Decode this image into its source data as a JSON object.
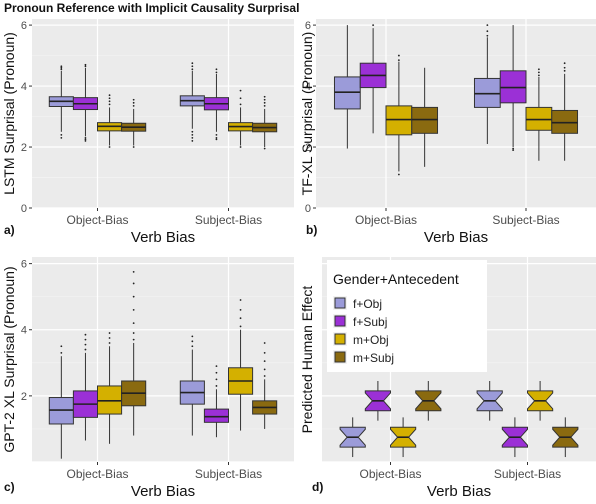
{
  "figure_title": "Pronoun Reference with Implicit Causality Surprisal",
  "legend": {
    "title": "Gender+Antecedent",
    "entries": [
      {
        "label": "f+Obj",
        "color": "#9b9bd9"
      },
      {
        "label": "f+Subj",
        "color": "#9b30d6"
      },
      {
        "label": "m+Obj",
        "color": "#d4b000"
      },
      {
        "label": "m+Subj",
        "color": "#8a6a10"
      }
    ]
  },
  "chart_data": [
    {
      "id": "a",
      "type": "box",
      "panel_label": "a)",
      "ylabel": "LSTM Surprisal (Pronoun)",
      "xlabel": "Verb Bias",
      "categories": [
        "Object-Bias",
        "Subject-Bias"
      ],
      "ylim": [
        0,
        6.2
      ],
      "yticks": [
        0,
        2,
        4,
        6
      ],
      "grid": true,
      "notch": false,
      "boxes": [
        {
          "cat": 0,
          "group": 0,
          "q1": 3.33,
          "median": 3.5,
          "q3": 3.65,
          "whisker_low": 2.5,
          "whisker_high": 4.5,
          "outliers_low": [
            2.4,
            2.3
          ],
          "outliers_high": [
            4.55,
            4.6,
            4.65
          ]
        },
        {
          "cat": 0,
          "group": 1,
          "q1": 3.23,
          "median": 3.42,
          "q3": 3.62,
          "whisker_low": 2.35,
          "whisker_high": 4.6,
          "outliers_low": [
            2.3,
            2.25,
            2.2
          ],
          "outliers_high": [
            4.65,
            4.7
          ]
        },
        {
          "cat": 0,
          "group": 2,
          "q1": 2.53,
          "median": 2.68,
          "q3": 2.8,
          "whisker_low": 2.05,
          "whisker_high": 3.3,
          "outliers_low": [
            2.0
          ],
          "outliers_high": [
            3.4,
            3.5,
            3.6,
            3.7
          ]
        },
        {
          "cat": 0,
          "group": 3,
          "q1": 2.52,
          "median": 2.65,
          "q3": 2.78,
          "whisker_low": 2.05,
          "whisker_high": 3.25,
          "outliers_low": [
            2.0
          ],
          "outliers_high": [
            3.35,
            3.45,
            3.55
          ]
        },
        {
          "cat": 1,
          "group": 0,
          "q1": 3.35,
          "median": 3.52,
          "q3": 3.68,
          "whisker_low": 2.6,
          "whisker_high": 4.5,
          "outliers_low": [
            2.5,
            2.4,
            2.3,
            2.2
          ],
          "outliers_high": [
            4.55,
            4.65,
            4.75
          ]
        },
        {
          "cat": 1,
          "group": 1,
          "q1": 3.22,
          "median": 3.42,
          "q3": 3.62,
          "whisker_low": 2.5,
          "whisker_high": 4.4,
          "outliers_low": [
            2.4,
            2.3,
            2.25
          ],
          "outliers_high": [
            4.45,
            4.55
          ]
        },
        {
          "cat": 1,
          "group": 2,
          "q1": 2.53,
          "median": 2.67,
          "q3": 2.8,
          "whisker_low": 2.05,
          "whisker_high": 3.3,
          "outliers_low": [
            2.0
          ],
          "outliers_high": [
            3.4,
            3.6,
            3.85
          ]
        },
        {
          "cat": 1,
          "group": 3,
          "q1": 2.5,
          "median": 2.64,
          "q3": 2.78,
          "whisker_low": 2.0,
          "whisker_high": 3.25,
          "outliers_low": [
            1.95
          ],
          "outliers_high": [
            3.35,
            3.45,
            3.55,
            3.65
          ]
        }
      ]
    },
    {
      "id": "b",
      "type": "box",
      "panel_label": "b)",
      "ylabel": "TF-XL Surprisal (Pronoun)",
      "xlabel": "Verb Bias",
      "categories": [
        "Object-Bias",
        "Subject-Bias"
      ],
      "ylim": [
        0,
        6.2
      ],
      "yticks": [
        0,
        2,
        4,
        6
      ],
      "grid": true,
      "notch": false,
      "boxes": [
        {
          "cat": 0,
          "group": 0,
          "q1": 3.25,
          "median": 3.8,
          "q3": 4.3,
          "whisker_low": 1.95,
          "whisker_high": 6.0,
          "outliers_low": [],
          "outliers_high": []
        },
        {
          "cat": 0,
          "group": 1,
          "q1": 3.95,
          "median": 4.35,
          "q3": 4.75,
          "whisker_low": 2.45,
          "whisker_high": 5.9,
          "outliers_low": [],
          "outliers_high": [
            6.0
          ]
        },
        {
          "cat": 0,
          "group": 2,
          "q1": 2.4,
          "median": 2.9,
          "q3": 3.35,
          "whisker_low": 1.2,
          "whisker_high": 4.8,
          "outliers_low": [
            1.1
          ],
          "outliers_high": [
            4.85,
            5.0
          ]
        },
        {
          "cat": 0,
          "group": 3,
          "q1": 2.45,
          "median": 2.9,
          "q3": 3.3,
          "whisker_low": 1.35,
          "whisker_high": 4.6,
          "outliers_low": [],
          "outliers_high": []
        },
        {
          "cat": 1,
          "group": 0,
          "q1": 3.3,
          "median": 3.75,
          "q3": 4.25,
          "whisker_low": 2.1,
          "whisker_high": 5.6,
          "outliers_low": [],
          "outliers_high": [
            5.65,
            5.8,
            6.0
          ]
        },
        {
          "cat": 1,
          "group": 1,
          "q1": 3.45,
          "median": 3.95,
          "q3": 4.5,
          "whisker_low": 2.0,
          "whisker_high": 6.0,
          "outliers_low": [
            1.95,
            1.9
          ],
          "outliers_high": []
        },
        {
          "cat": 1,
          "group": 2,
          "q1": 2.55,
          "median": 2.9,
          "q3": 3.3,
          "whisker_low": 1.55,
          "whisker_high": 4.3,
          "outliers_low": [],
          "outliers_high": [
            4.35,
            4.45,
            4.55
          ]
        },
        {
          "cat": 1,
          "group": 3,
          "q1": 2.45,
          "median": 2.8,
          "q3": 3.2,
          "whisker_low": 1.55,
          "whisker_high": 4.4,
          "outliers_low": [],
          "outliers_high": [
            4.5,
            4.6,
            4.75
          ]
        }
      ]
    },
    {
      "id": "c",
      "type": "box",
      "panel_label": "c)",
      "ylabel": "GPT-2 XL Surprisal (Pronoun)",
      "xlabel": "Verb Bias",
      "categories": [
        "Object-Bias",
        "Subject-Bias"
      ],
      "ylim": [
        0,
        6.2
      ],
      "yticks": [
        2,
        4,
        6
      ],
      "grid": true,
      "notch": false,
      "boxes": [
        {
          "cat": 0,
          "group": 0,
          "q1": 1.15,
          "median": 1.57,
          "q3": 1.95,
          "whisker_low": 0.1,
          "whisker_high": 3.2,
          "outliers_low": [],
          "outliers_high": [
            3.3,
            3.5
          ]
        },
        {
          "cat": 0,
          "group": 1,
          "q1": 1.35,
          "median": 1.75,
          "q3": 2.15,
          "whisker_low": 0.65,
          "whisker_high": 3.3,
          "outliers_low": [],
          "outliers_high": [
            3.4,
            3.55,
            3.7,
            3.85
          ]
        },
        {
          "cat": 0,
          "group": 2,
          "q1": 1.45,
          "median": 1.85,
          "q3": 2.3,
          "whisker_low": 0.55,
          "whisker_high": 3.5,
          "outliers_low": [],
          "outliers_high": [
            3.6,
            3.75,
            3.9
          ]
        },
        {
          "cat": 0,
          "group": 3,
          "q1": 1.7,
          "median": 2.08,
          "q3": 2.45,
          "whisker_low": 0.8,
          "whisker_high": 3.6,
          "outliers_low": [],
          "outliers_high": [
            3.7,
            3.9,
            4.2,
            4.6,
            5.0,
            5.4,
            5.75
          ]
        },
        {
          "cat": 1,
          "group": 0,
          "q1": 1.75,
          "median": 2.1,
          "q3": 2.45,
          "whisker_low": 0.8,
          "whisker_high": 3.4,
          "outliers_low": [],
          "outliers_high": [
            3.5,
            3.65,
            3.8
          ]
        },
        {
          "cat": 1,
          "group": 1,
          "q1": 1.2,
          "median": 1.37,
          "q3": 1.6,
          "whisker_low": 0.75,
          "whisker_high": 2.2,
          "outliers_low": [],
          "outliers_high": [
            2.3,
            2.5,
            2.7,
            2.9
          ]
        },
        {
          "cat": 1,
          "group": 2,
          "q1": 2.05,
          "median": 2.45,
          "q3": 2.85,
          "whisker_low": 0.95,
          "whisker_high": 4.0,
          "outliers_low": [],
          "outliers_high": [
            4.1,
            4.35,
            4.6,
            4.9
          ]
        },
        {
          "cat": 1,
          "group": 3,
          "q1": 1.45,
          "median": 1.65,
          "q3": 1.85,
          "whisker_low": 1.0,
          "whisker_high": 2.5,
          "outliers_low": [],
          "outliers_high": [
            2.6,
            2.8,
            3.05,
            3.3,
            3.6
          ]
        }
      ]
    },
    {
      "id": "d",
      "type": "box",
      "panel_label": "d)",
      "ylabel": "Predicted Human Effect",
      "xlabel": "Verb Bias",
      "categories": [
        "Object-Bias",
        "Subject-Bias"
      ],
      "ylim": [
        0,
        6.2
      ],
      "yticks": [],
      "grid": true,
      "notch": true,
      "boxes": [
        {
          "cat": 0,
          "group": 0,
          "q1": 0.45,
          "median": 0.75,
          "q3": 1.05,
          "whisker_low": 0.15,
          "whisker_high": 1.35,
          "outliers_low": [],
          "outliers_high": []
        },
        {
          "cat": 0,
          "group": 1,
          "q1": 1.55,
          "median": 1.85,
          "q3": 2.15,
          "whisker_low": 1.25,
          "whisker_high": 2.45,
          "outliers_low": [],
          "outliers_high": []
        },
        {
          "cat": 0,
          "group": 2,
          "q1": 0.45,
          "median": 0.75,
          "q3": 1.05,
          "whisker_low": 0.15,
          "whisker_high": 1.35,
          "outliers_low": [],
          "outliers_high": []
        },
        {
          "cat": 0,
          "group": 3,
          "q1": 1.55,
          "median": 1.85,
          "q3": 2.15,
          "whisker_low": 1.25,
          "whisker_high": 2.45,
          "outliers_low": [],
          "outliers_high": []
        },
        {
          "cat": 1,
          "group": 0,
          "q1": 1.55,
          "median": 1.85,
          "q3": 2.15,
          "whisker_low": 1.25,
          "whisker_high": 2.45,
          "outliers_low": [],
          "outliers_high": []
        },
        {
          "cat": 1,
          "group": 1,
          "q1": 0.45,
          "median": 0.75,
          "q3": 1.05,
          "whisker_low": 0.15,
          "whisker_high": 1.35,
          "outliers_low": [],
          "outliers_high": []
        },
        {
          "cat": 1,
          "group": 2,
          "q1": 1.55,
          "median": 1.85,
          "q3": 2.15,
          "whisker_low": 1.25,
          "whisker_high": 2.45,
          "outliers_low": [],
          "outliers_high": []
        },
        {
          "cat": 1,
          "group": 3,
          "q1": 0.45,
          "median": 0.75,
          "q3": 1.05,
          "whisker_low": 0.15,
          "whisker_high": 1.35,
          "outliers_low": [],
          "outliers_high": []
        }
      ]
    }
  ]
}
